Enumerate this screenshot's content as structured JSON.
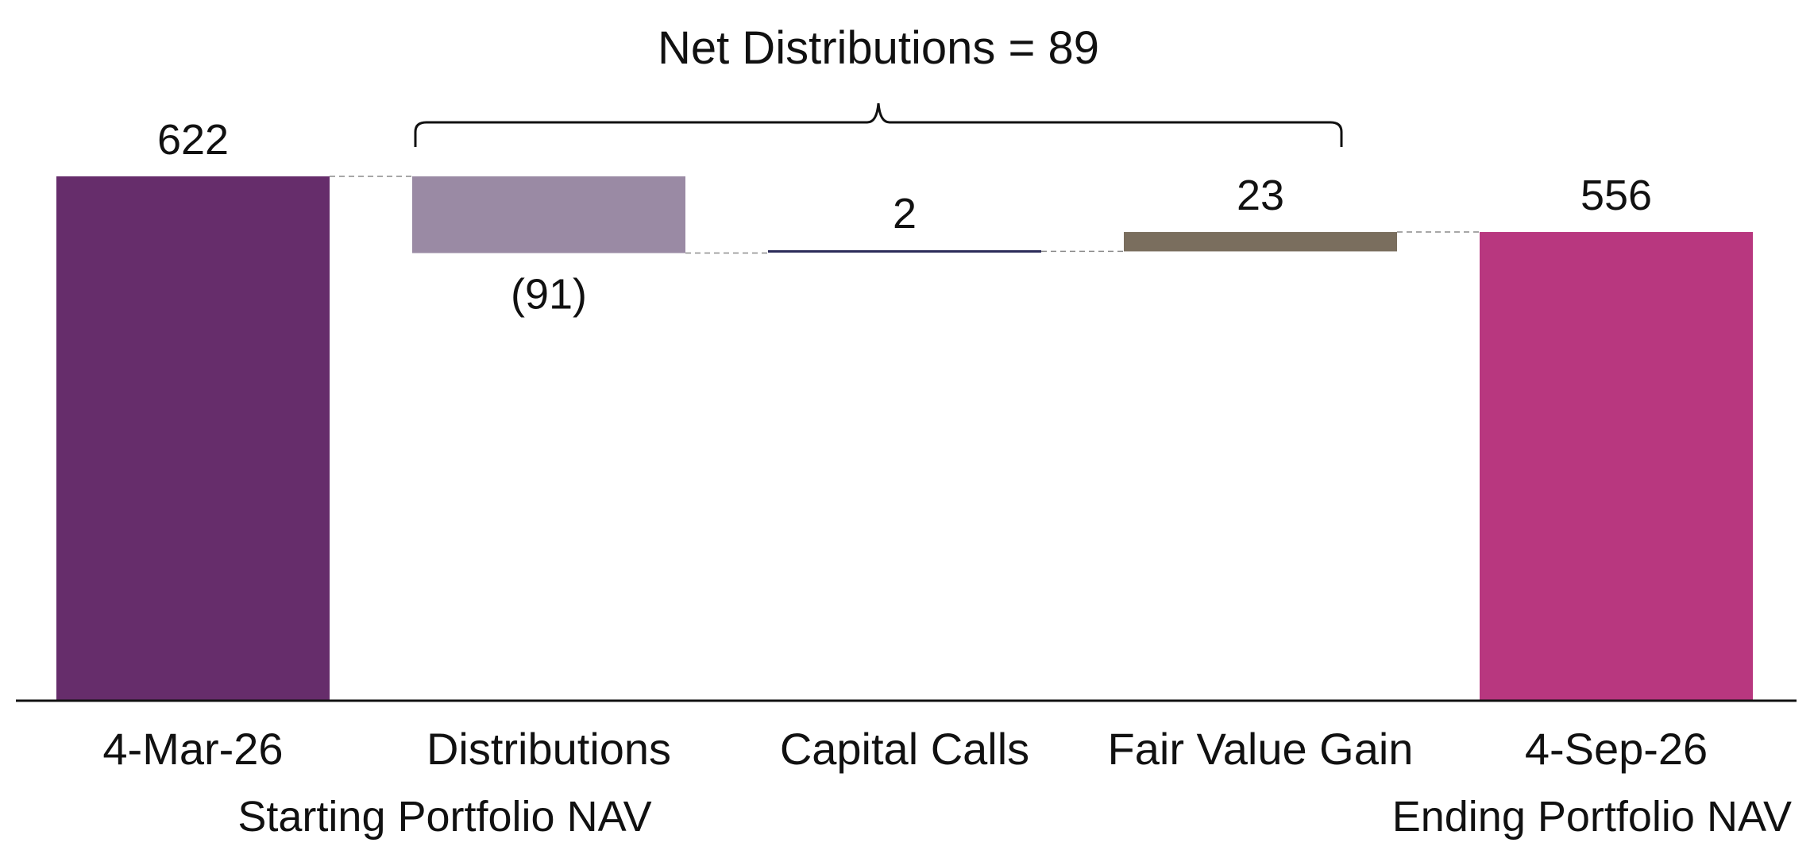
{
  "chart_data": {
    "type": "bar",
    "subtype": "waterfall",
    "categories": [
      "4-Mar-26",
      "Distributions",
      "Capital Calls",
      "Fair Value Gain",
      "4-Sep-26"
    ],
    "sublabels": [
      "Starting Portfolio NAV",
      "",
      "",
      "",
      "Ending Portfolio NAV"
    ],
    "values": [
      622,
      -91,
      2,
      23,
      556
    ],
    "data_labels": [
      "622",
      "(91)",
      "2",
      "23",
      "556"
    ],
    "bar_kinds": [
      "total",
      "delta",
      "delta",
      "delta",
      "total"
    ],
    "colors": [
      "#662d6b",
      "#9a8aa4",
      "#2a2a58",
      "#7a6e5e",
      "#b8377f"
    ],
    "connector_color": "#8a8a8a",
    "ylim": [
      0,
      622
    ],
    "annotation": {
      "text": "Net Distributions = 89",
      "spans": [
        "Distributions",
        "Fair Value Gain"
      ]
    },
    "title": "",
    "xlabel": "",
    "ylabel": "",
    "grid": false,
    "legend": "none"
  }
}
